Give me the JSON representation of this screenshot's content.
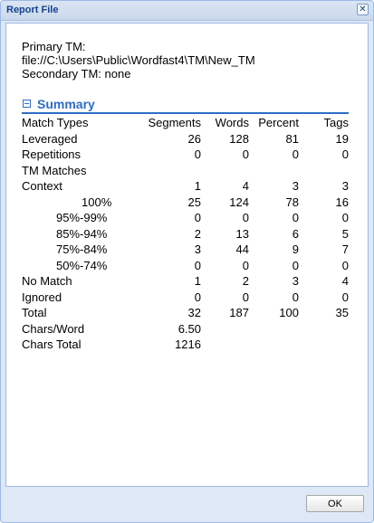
{
  "window": {
    "title": "Report File",
    "close_glyph": "✕"
  },
  "tm_info": {
    "primary_label": "Primary TM:",
    "primary_path": "file://C:\\Users\\Public\\Wordfast4\\TM\\New_TM",
    "secondary": "Secondary TM: none"
  },
  "summary": {
    "title": "Summary",
    "toggle_icon": "collapse-icon",
    "headers": [
      "Match Types",
      "Segments",
      "Words",
      "Percent",
      "Tags"
    ],
    "rows": [
      {
        "label": "Leveraged",
        "indent": 0,
        "values": [
          "26",
          "128",
          "81",
          "19"
        ]
      },
      {
        "label": "Repetitions",
        "indent": 0,
        "values": [
          "0",
          "0",
          "0",
          "0"
        ]
      },
      {
        "label": "TM Matches",
        "indent": 0,
        "values": [
          "",
          "",
          "",
          ""
        ]
      },
      {
        "label": "Context",
        "indent": 0,
        "values": [
          "1",
          "4",
          "3",
          "3"
        ]
      },
      {
        "label": "100%",
        "indent": 1,
        "values": [
          "25",
          "124",
          "78",
          "16"
        ]
      },
      {
        "label": "95%-99%",
        "indent": 2,
        "values": [
          "0",
          "0",
          "0",
          "0"
        ]
      },
      {
        "label": "85%-94%",
        "indent": 2,
        "values": [
          "2",
          "13",
          "6",
          "5"
        ]
      },
      {
        "label": "75%-84%",
        "indent": 2,
        "values": [
          "3",
          "44",
          "9",
          "7"
        ]
      },
      {
        "label": "50%-74%",
        "indent": 2,
        "values": [
          "0",
          "0",
          "0",
          "0"
        ]
      },
      {
        "label": "No Match",
        "indent": 0,
        "values": [
          "1",
          "2",
          "3",
          "4"
        ]
      },
      {
        "label": "Ignored",
        "indent": 0,
        "values": [
          "0",
          "0",
          "0",
          "0"
        ]
      },
      {
        "label": "Total",
        "indent": 0,
        "values": [
          "32",
          "187",
          "100",
          "35"
        ]
      },
      {
        "label": "Chars/Word",
        "indent": 0,
        "values": [
          "6.50",
          "",
          "",
          ""
        ]
      },
      {
        "label": "Chars Total",
        "indent": 0,
        "values": [
          "1216",
          "",
          "",
          ""
        ]
      }
    ]
  },
  "footer": {
    "ok_label": "OK"
  },
  "colors": {
    "accent": "#2f6cc6",
    "title_text": "#15428b",
    "frame": "#dfe8f6",
    "border": "#99bbe8"
  }
}
